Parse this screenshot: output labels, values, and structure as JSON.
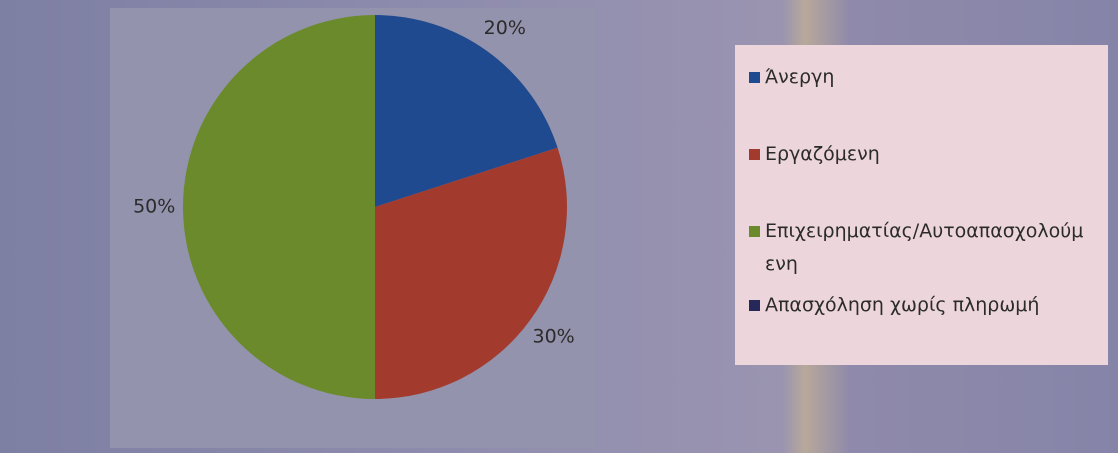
{
  "chart_data": {
    "type": "pie",
    "categories": [
      "Άνεργη",
      "Εργαζόμενη",
      "Επιχειρηματίας/Αυτοαπασχολούμενη",
      "Απασχόληση χωρίς πληρωμή"
    ],
    "values": [
      20,
      30,
      50,
      0
    ],
    "value_labels": [
      "20%",
      "30%",
      "50%",
      null
    ],
    "colors": [
      "#1f4a8f",
      "#a23b2e",
      "#6a8a2b",
      "#27285a"
    ]
  }
}
